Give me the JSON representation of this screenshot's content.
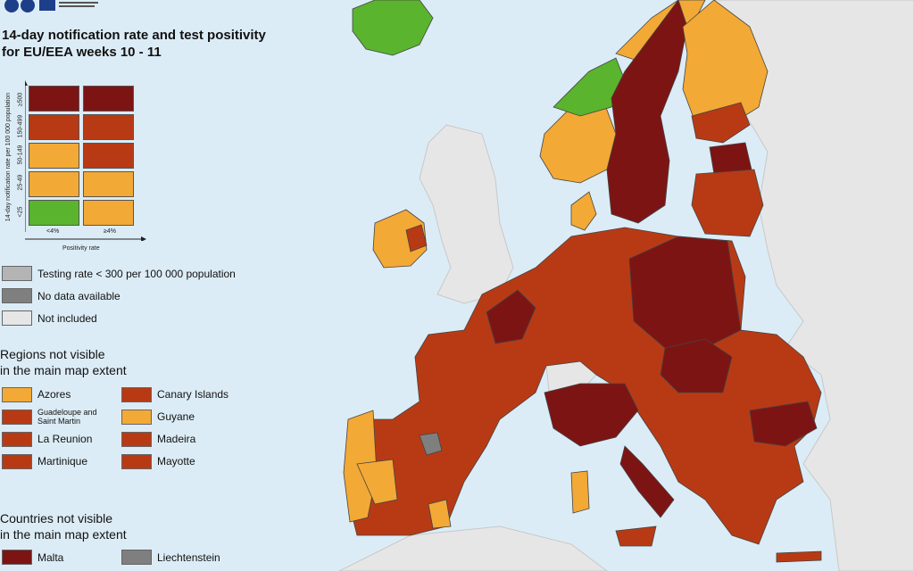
{
  "title": {
    "line1": "14-day notification rate and test positivity",
    "line2": "for EU/EEA weeks 10 - 11"
  },
  "colors": {
    "dark_red": "#7d1414",
    "red": "#b83a14",
    "orange": "#f3a935",
    "green": "#5ab42e",
    "grey_testing": "#b4b4b4",
    "grey_nodata": "#7f7f7f",
    "not_included": "#e6e6e6",
    "sea": "#dcecf6"
  },
  "matrix": {
    "y_axis_label": "14-day notification rate per 100 000 population",
    "y_ticks": [
      "≥500",
      "150-499",
      "50-149",
      "25-49",
      "<25"
    ],
    "x_axis_label": "Positivity rate",
    "x_ticks": [
      "<4%",
      "≥4%"
    ],
    "cells": [
      [
        "dark_red",
        "dark_red"
      ],
      [
        "red",
        "red"
      ],
      [
        "orange",
        "red"
      ],
      [
        "orange",
        "orange"
      ],
      [
        "green",
        "orange"
      ]
    ]
  },
  "legend": {
    "testing": "Testing rate < 300 per 100 000 population",
    "no_data": "No data available",
    "not_included": "Not included"
  },
  "regions": {
    "heading_line1": "Regions not visible",
    "heading_line2": "in the main map extent",
    "items": [
      {
        "label": "Azores",
        "color": "orange"
      },
      {
        "label": "Canary Islands",
        "color": "red"
      },
      {
        "label": "Guadeloupe and Saint Martin",
        "color": "red"
      },
      {
        "label": "Guyane",
        "color": "orange"
      },
      {
        "label": "La Reunion",
        "color": "red"
      },
      {
        "label": "Madeira",
        "color": "red"
      },
      {
        "label": "Martinique",
        "color": "red"
      },
      {
        "label": "Mayotte",
        "color": "red"
      }
    ]
  },
  "countries": {
    "heading_line1": "Countries not visible",
    "heading_line2": "in the main map extent",
    "items": [
      {
        "label": "Malta",
        "color": "dark_red"
      },
      {
        "label": "Liechtenstein",
        "color": "grey_nodata"
      }
    ]
  }
}
